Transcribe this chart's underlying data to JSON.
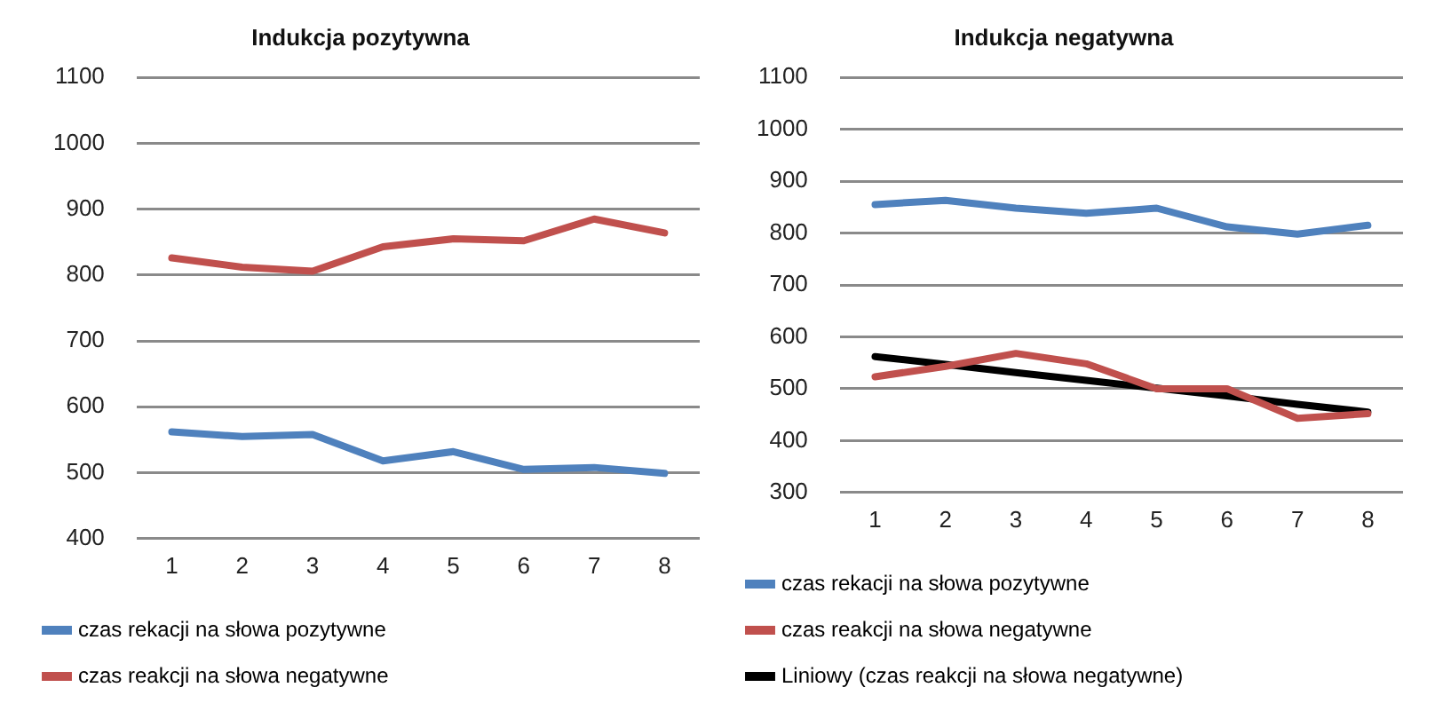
{
  "chart_data": [
    {
      "type": "line",
      "title": "Indukcja pozytywna",
      "categories": [
        "1",
        "2",
        "3",
        "4",
        "5",
        "6",
        "7",
        "8"
      ],
      "series": [
        {
          "name": "czas rekacji na słowa pozytywne",
          "color": "#4f81bd",
          "values": [
            562,
            555,
            558,
            518,
            532,
            505,
            508,
            499
          ]
        },
        {
          "name": "czas reakcji na słowa negatywne",
          "color": "#c0504d",
          "values": [
            826,
            812,
            806,
            843,
            855,
            852,
            885,
            864
          ]
        }
      ],
      "ylim": [
        400,
        1100
      ],
      "yticks": [
        400,
        500,
        600,
        700,
        800,
        900,
        1000,
        1100
      ],
      "grid": "y",
      "legend": "bottom",
      "marker": "none",
      "line_style": "solid"
    },
    {
      "type": "line",
      "title": "Indukcja negatywna",
      "categories": [
        "1",
        "2",
        "3",
        "4",
        "5",
        "6",
        "7",
        "8"
      ],
      "series": [
        {
          "name": "czas rekacji na słowa pozytywne",
          "color": "#4f81bd",
          "values": [
            855,
            863,
            848,
            838,
            848,
            812,
            798,
            815
          ]
        },
        {
          "name": "czas reakcji na słowa negatywne",
          "color": "#c0504d",
          "values": [
            523,
            543,
            568,
            548,
            500,
            500,
            443,
            452
          ]
        },
        {
          "name": "Liniowy (czas reakcji na słowa negatywne)",
          "color": "#000000",
          "type": "line",
          "values": [
            562,
            547,
            531,
            516,
            501,
            486,
            470,
            455
          ]
        }
      ],
      "ylim": [
        300,
        1100
      ],
      "yticks": [
        300,
        400,
        500,
        600,
        700,
        800,
        900,
        1000,
        1100
      ],
      "grid": "y",
      "legend": "bottom",
      "marker": "none",
      "line_style": "solid"
    }
  ]
}
